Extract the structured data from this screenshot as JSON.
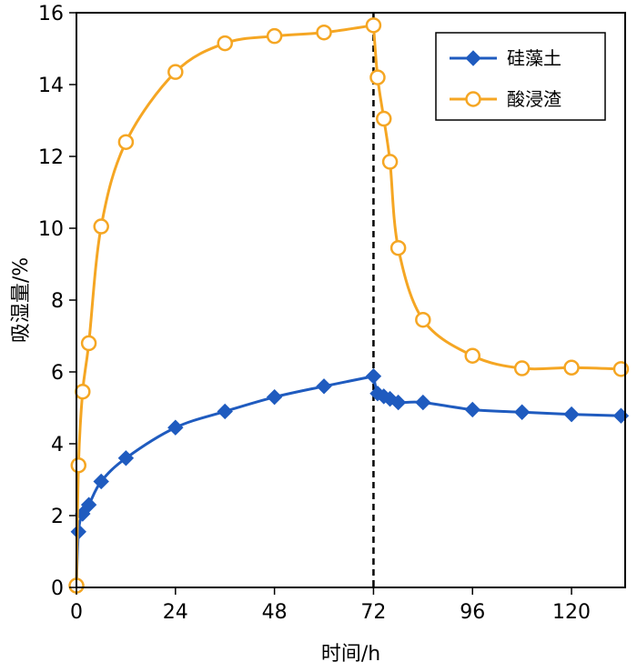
{
  "chart_data": {
    "type": "line",
    "xlabel": "时间/h",
    "ylabel": "吸湿量/%",
    "xlim": [
      0,
      133
    ],
    "ylim": [
      0,
      16
    ],
    "xticks": [
      0,
      24,
      48,
      72,
      96,
      120
    ],
    "yticks": [
      0,
      2,
      4,
      6,
      8,
      10,
      12,
      14,
      16
    ],
    "grid": false,
    "legend_position": "top-right",
    "vline": {
      "x": 72,
      "style": "dashed",
      "color": "#000000"
    },
    "series": [
      {
        "name": "硅藻土",
        "color": "#1f5bbf",
        "marker": "diamond",
        "points": [
          [
            0,
            0.05
          ],
          [
            0.5,
            1.55
          ],
          [
            1.5,
            2.05
          ],
          [
            3,
            2.3
          ],
          [
            6,
            2.95
          ],
          [
            12,
            3.6
          ],
          [
            24,
            4.45
          ],
          [
            36,
            4.9
          ],
          [
            48,
            5.3
          ],
          [
            60,
            5.6
          ],
          [
            72,
            5.88
          ],
          [
            73,
            5.4
          ],
          [
            74.5,
            5.32
          ],
          [
            76,
            5.25
          ],
          [
            78,
            5.15
          ],
          [
            84,
            5.15
          ],
          [
            96,
            4.95
          ],
          [
            108,
            4.88
          ],
          [
            120,
            4.82
          ],
          [
            132,
            4.78
          ]
        ]
      },
      {
        "name": "酸浸渣",
        "color": "#f5a623",
        "marker": "open-circle",
        "points": [
          [
            0,
            0.05
          ],
          [
            0.5,
            3.4
          ],
          [
            1.5,
            5.45
          ],
          [
            3,
            6.8
          ],
          [
            6,
            10.05
          ],
          [
            12,
            12.4
          ],
          [
            24,
            14.35
          ],
          [
            36,
            15.15
          ],
          [
            48,
            15.35
          ],
          [
            60,
            15.45
          ],
          [
            72,
            15.65
          ],
          [
            73,
            14.2
          ],
          [
            74.5,
            13.05
          ],
          [
            76,
            11.85
          ],
          [
            78,
            9.45
          ],
          [
            84,
            7.45
          ],
          [
            96,
            6.45
          ],
          [
            108,
            6.1
          ],
          [
            120,
            6.12
          ],
          [
            132,
            6.08
          ]
        ]
      }
    ]
  }
}
